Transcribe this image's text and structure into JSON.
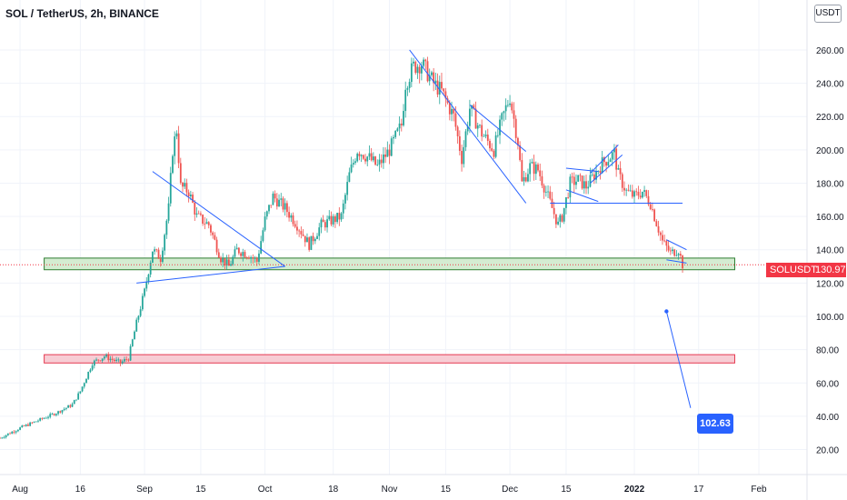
{
  "header": {
    "title": "SOL / TetherUS, 2h, BINANCE",
    "unit_badge": "USDT"
  },
  "price_tag": {
    "symbol": "SOLUSDT",
    "value": "130.97"
  },
  "callout": {
    "value": "102.63"
  },
  "colors": {
    "candle_up": "#26a69a",
    "candle_down": "#ef5350",
    "trendline": "#2962ff",
    "support_zone_fill": "#d4ecd1",
    "support_zone_border": "#2e7d32",
    "demand_zone_fill": "#f7cdd4",
    "demand_zone_border": "#e53950",
    "price_tag": "#f23645",
    "callout": "#2962ff"
  },
  "chart_data": {
    "type": "candlestick",
    "title": "SOL / TetherUS, 2h, BINANCE",
    "y_unit": "USDT",
    "ylim": [
      5,
      290
    ],
    "y_ticks": [
      20,
      40,
      60,
      80,
      100,
      120,
      140,
      160,
      180,
      200,
      220,
      240,
      260
    ],
    "y_tick_labels": [
      "20.00",
      "40.00",
      "60.00",
      "80.00",
      "100.00",
      "120.00",
      "140.00",
      "160.00",
      "180.00",
      "200.00",
      "220.00",
      "240.00",
      "260.00"
    ],
    "xlim": [
      "2021-07-27",
      "2022-02-13"
    ],
    "x_ticks": [
      {
        "date": "2021-08-01",
        "label": "Aug"
      },
      {
        "date": "2021-08-16",
        "label": "16"
      },
      {
        "date": "2021-09-01",
        "label": "Sep"
      },
      {
        "date": "2021-09-15",
        "label": "15"
      },
      {
        "date": "2021-10-01",
        "label": "Oct"
      },
      {
        "date": "2021-10-18",
        "label": "18"
      },
      {
        "date": "2021-11-01",
        "label": "Nov"
      },
      {
        "date": "2021-11-15",
        "label": "15"
      },
      {
        "date": "2021-12-01",
        "label": "Dec"
      },
      {
        "date": "2021-12-15",
        "label": "15"
      },
      {
        "date": "2022-01-01",
        "label": "2022"
      },
      {
        "date": "2022-01-17",
        "label": "17"
      },
      {
        "date": "2022-02-01",
        "label": "Feb"
      }
    ],
    "price_path": [
      [
        "2021-07-27",
        27
      ],
      [
        "2021-08-01",
        33
      ],
      [
        "2021-08-06",
        38
      ],
      [
        "2021-08-10",
        42
      ],
      [
        "2021-08-14",
        47
      ],
      [
        "2021-08-16",
        55
      ],
      [
        "2021-08-19",
        72
      ],
      [
        "2021-08-22",
        76
      ],
      [
        "2021-08-26",
        72
      ],
      [
        "2021-08-28",
        75
      ],
      [
        "2021-08-30",
        96
      ],
      [
        "2021-09-01",
        115
      ],
      [
        "2021-09-03",
        140
      ],
      [
        "2021-09-05",
        135
      ],
      [
        "2021-09-07",
        165
      ],
      [
        "2021-09-08",
        200
      ],
      [
        "2021-09-09",
        212
      ],
      [
        "2021-09-10",
        178
      ],
      [
        "2021-09-12",
        175
      ],
      [
        "2021-09-14",
        160
      ],
      [
        "2021-09-17",
        155
      ],
      [
        "2021-09-20",
        135
      ],
      [
        "2021-09-22",
        130
      ],
      [
        "2021-09-24",
        140
      ],
      [
        "2021-09-27",
        137
      ],
      [
        "2021-09-29",
        133
      ],
      [
        "2021-10-01",
        158
      ],
      [
        "2021-10-03",
        172
      ],
      [
        "2021-10-06",
        165
      ],
      [
        "2021-10-09",
        155
      ],
      [
        "2021-10-12",
        143
      ],
      [
        "2021-10-15",
        155
      ],
      [
        "2021-10-18",
        158
      ],
      [
        "2021-10-20",
        160
      ],
      [
        "2021-10-22",
        185
      ],
      [
        "2021-10-24",
        200
      ],
      [
        "2021-10-27",
        195
      ],
      [
        "2021-10-29",
        190
      ],
      [
        "2021-11-01",
        200
      ],
      [
        "2021-11-04",
        215
      ],
      [
        "2021-11-05",
        240
      ],
      [
        "2021-11-07",
        250
      ],
      [
        "2021-11-09",
        252
      ],
      [
        "2021-11-12",
        240
      ],
      [
        "2021-11-14",
        235
      ],
      [
        "2021-11-17",
        220
      ],
      [
        "2021-11-19",
        195
      ],
      [
        "2021-11-21",
        225
      ],
      [
        "2021-11-24",
        210
      ],
      [
        "2021-11-27",
        200
      ],
      [
        "2021-11-29",
        218
      ],
      [
        "2021-12-01",
        232
      ],
      [
        "2021-12-03",
        205
      ],
      [
        "2021-12-04",
        180
      ],
      [
        "2021-12-06",
        190
      ],
      [
        "2021-12-08",
        188
      ],
      [
        "2021-12-10",
        175
      ],
      [
        "2021-12-13",
        155
      ],
      [
        "2021-12-14",
        160
      ],
      [
        "2021-12-16",
        180
      ],
      [
        "2021-12-18",
        182
      ],
      [
        "2021-12-20",
        178
      ],
      [
        "2021-12-22",
        185
      ],
      [
        "2021-12-24",
        192
      ],
      [
        "2021-12-27",
        198
      ],
      [
        "2021-12-28",
        185
      ],
      [
        "2021-12-30",
        175
      ],
      [
        "2022-01-01",
        172
      ],
      [
        "2022-01-03",
        175
      ],
      [
        "2022-01-05",
        168
      ],
      [
        "2022-01-06",
        160
      ],
      [
        "2022-01-08",
        145
      ],
      [
        "2022-01-10",
        138
      ],
      [
        "2022-01-12",
        140
      ],
      [
        "2022-01-13",
        131
      ]
    ],
    "last_price": 130.97,
    "zones": [
      {
        "name": "support",
        "from_date": "2021-08-07",
        "to_date": "2022-01-26",
        "y_low": 128,
        "y_high": 135
      },
      {
        "name": "demand",
        "from_date": "2021-08-07",
        "to_date": "2022-01-26",
        "y_low": 72,
        "y_high": 77
      }
    ],
    "trendlines": [
      {
        "from": [
          "2021-09-03",
          187
        ],
        "to": [
          "2021-10-06",
          130
        ]
      },
      {
        "from": [
          "2021-08-30",
          120
        ],
        "to": [
          "2021-10-06",
          130
        ]
      },
      {
        "from": [
          "2021-11-06",
          260
        ],
        "to": [
          "2021-12-05",
          168
        ]
      },
      {
        "from": [
          "2021-11-21",
          227
        ],
        "to": [
          "2021-12-05",
          199
        ]
      },
      {
        "from": [
          "2021-12-15",
          189
        ],
        "to": [
          "2021-12-23",
          187
        ]
      },
      {
        "from": [
          "2021-12-15",
          176
        ],
        "to": [
          "2021-12-23",
          169
        ]
      },
      {
        "from": [
          "2021-12-21",
          186
        ],
        "to": [
          "2021-12-28",
          203
        ]
      },
      {
        "from": [
          "2021-12-21",
          180
        ],
        "to": [
          "2021-12-29",
          197
        ]
      },
      {
        "from": [
          "2021-12-11",
          168
        ],
        "to": [
          "2022-01-13",
          168
        ]
      },
      {
        "from": [
          "2022-01-09",
          146
        ],
        "to": [
          "2022-01-14",
          140
        ]
      },
      {
        "from": [
          "2022-01-09",
          134
        ],
        "to": [
          "2022-01-14",
          132
        ]
      }
    ],
    "target_line": {
      "from": [
        "2022-01-09",
        103
      ],
      "to": [
        "2022-01-15",
        45
      ]
    }
  }
}
